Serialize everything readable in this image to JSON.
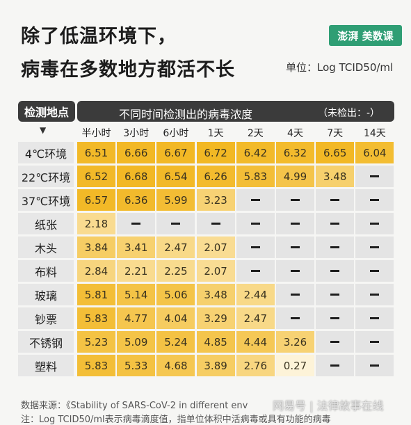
{
  "title_line1": "除了低温环境下，",
  "title_line2": "病毒在多数地方都活不长",
  "logo_text": "澎湃 美数课",
  "unit": "单位：Log TCID50/ml",
  "watermark": "网易号 | 法律故事在线",
  "footer": {
    "source": "数据来源：《Stability of SARS-CoV-2 in different env",
    "note": "注：Log TCID50/ml表示病毒滴度值，指单位体积中活病毒或具有功能的病毒"
  },
  "colors": {
    "dark_header": "#3b3b3b",
    "high": "#f2b824",
    "low": "#fdf3d8",
    "empty": "#e4e4e4",
    "logo": "#2f9e74"
  },
  "chart_data": {
    "type": "heatmap",
    "row_header": "检测地点",
    "row_header_marker": "▼",
    "column_group_title": "不同时间检测出的病毒浓度",
    "not_detected_note": "（未检出：-）",
    "columns": [
      "半小时",
      "3小时",
      "6小时",
      "1天",
      "2天",
      "4天",
      "7天",
      "14天"
    ],
    "rows": [
      {
        "label": "4℃环境",
        "values": [
          6.51,
          6.66,
          6.67,
          6.72,
          6.42,
          6.32,
          6.65,
          6.04
        ]
      },
      {
        "label": "22℃环境",
        "values": [
          6.52,
          6.68,
          6.54,
          6.26,
          5.83,
          4.99,
          3.48,
          null
        ]
      },
      {
        "label": "37℃环境",
        "values": [
          6.57,
          6.36,
          5.99,
          3.23,
          null,
          null,
          null,
          null
        ]
      },
      {
        "label": "纸张",
        "values": [
          2.18,
          null,
          null,
          null,
          null,
          null,
          null,
          null
        ]
      },
      {
        "label": "木头",
        "values": [
          3.84,
          3.41,
          2.47,
          2.07,
          null,
          null,
          null,
          null
        ]
      },
      {
        "label": "布料",
        "values": [
          2.84,
          2.21,
          2.25,
          2.07,
          null,
          null,
          null,
          null
        ]
      },
      {
        "label": "玻璃",
        "values": [
          5.81,
          5.14,
          5.06,
          3.48,
          2.44,
          null,
          null,
          null
        ]
      },
      {
        "label": "钞票",
        "values": [
          5.83,
          4.77,
          4.04,
          3.29,
          2.47,
          null,
          null,
          null
        ]
      },
      {
        "label": "不锈钢",
        "values": [
          5.23,
          5.09,
          5.24,
          4.85,
          4.44,
          3.26,
          null,
          null
        ]
      },
      {
        "label": "塑料",
        "values": [
          5.83,
          5.33,
          4.68,
          3.89,
          2.76,
          0.27,
          null,
          null
        ]
      }
    ]
  }
}
